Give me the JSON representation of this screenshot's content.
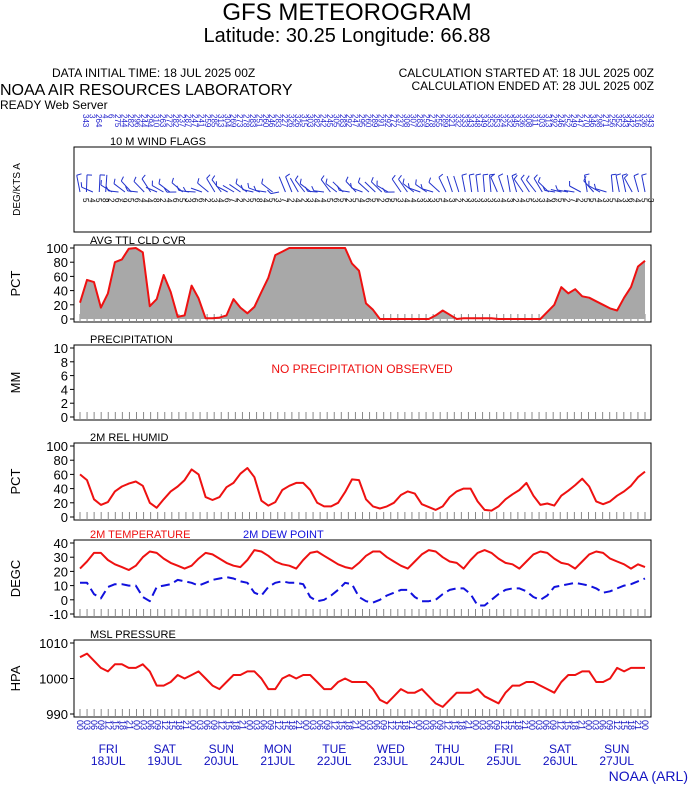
{
  "header": {
    "title": "GFS METEOROGRAM",
    "subtitle": "Latitude: 30.25 Longitude:  66.88",
    "initial_time": "DATA INITIAL TIME: 18 JUL 2025 00Z",
    "calc_started": "CALCULATION STARTED AT: 18 JUL 2025 00Z",
    "calc_ended": "CALCULATION ENDED AT: 28 JUL 2025 00Z",
    "lab": "NOAA AIR RESOURCES LABORATORY",
    "server": "READY Web Server",
    "credit": "NOAA (ARL)"
  },
  "colors": {
    "temp": "#ee1111",
    "dew": "#1111dd",
    "cloud_fill": "#a8a8a8",
    "day_labels": "#1010c0"
  },
  "chart_data": [
    {
      "type": "wind-flags",
      "title": "10 M  WIND FLAGS",
      "ylabel": "DEG/KTS  A",
      "directions": [
        343,
        3,
        264,
        4,
        6,
        275,
        244,
        282,
        296,
        244,
        294,
        310,
        263,
        272,
        282,
        237,
        287,
        247,
        241,
        259,
        285,
        313,
        304,
        269,
        273,
        278,
        283,
        251,
        260,
        246,
        283,
        227,
        326,
        326,
        315,
        303,
        282,
        242,
        245,
        305,
        283,
        292,
        247,
        295,
        260,
        289,
        291,
        292,
        272,
        237,
        308,
        307,
        283,
        259,
        278,
        255,
        289,
        321,
        332,
        333,
        343,
        348,
        349,
        353,
        353,
        324,
        332,
        345,
        336,
        308,
        311,
        303,
        313,
        292,
        246,
        252,
        249,
        247,
        270,
        346,
        298,
        271,
        256,
        352,
        343,
        342,
        316,
        336,
        343
      ],
      "speeds": [
        5,
        4,
        5,
        8,
        2,
        6,
        9,
        5,
        6,
        4,
        4,
        8,
        2,
        4,
        6,
        5,
        3,
        6,
        6,
        2,
        3,
        4,
        6,
        7,
        2,
        2,
        5,
        8,
        4,
        5,
        3,
        7,
        2,
        4,
        2,
        3,
        4,
        4,
        5,
        6,
        5,
        2,
        5,
        4,
        6,
        5,
        2,
        6,
        5,
        3,
        4,
        4,
        3,
        3,
        3,
        5,
        4,
        3,
        2,
        2,
        3,
        3,
        3,
        3,
        3,
        4,
        3,
        2,
        4,
        5,
        3,
        3,
        4,
        6,
        5,
        2,
        7,
        2,
        5,
        5,
        4,
        3,
        5,
        4,
        3,
        6,
        4,
        5,
        3
      ]
    },
    {
      "type": "area",
      "title": "AVG TTL CLD CVR",
      "ylabel": "PCT",
      "ylim": [
        0,
        100
      ],
      "yticks": [
        0,
        20,
        40,
        60,
        80,
        100
      ],
      "values": [
        23,
        55,
        52,
        16,
        36,
        80,
        84,
        99,
        100,
        94,
        18,
        28,
        62,
        38,
        3,
        5,
        47,
        29,
        1,
        1,
        2,
        5,
        28,
        16,
        8,
        17,
        38,
        58,
        90,
        95,
        100,
        101,
        101,
        101,
        101,
        101,
        100,
        100,
        102,
        78,
        68,
        22,
        13,
        0,
        0,
        0,
        0,
        0,
        0,
        0,
        0,
        5,
        12,
        6,
        0,
        1,
        1,
        1,
        1,
        1,
        0,
        0,
        0,
        0,
        0,
        0,
        0,
        10,
        20,
        45,
        36,
        42,
        32,
        30,
        25,
        20,
        15,
        12,
        30,
        45,
        74,
        82
      ]
    },
    {
      "type": "line",
      "title": "PRECIPITATION",
      "ylabel": "MM",
      "ylim": [
        0,
        10
      ],
      "yticks": [
        0,
        2,
        4,
        6,
        8,
        10
      ],
      "note": "NO PRECIPITATION OBSERVED",
      "values": []
    },
    {
      "type": "line",
      "title": "2M REL HUMID",
      "ylabel": "PCT",
      "ylim": [
        0,
        100
      ],
      "yticks": [
        0,
        20,
        40,
        60,
        80,
        100
      ],
      "values": [
        60,
        52,
        25,
        17,
        21,
        36,
        43,
        47,
        50,
        44,
        20,
        13,
        25,
        36,
        43,
        52,
        67,
        60,
        28,
        24,
        28,
        42,
        48,
        61,
        69,
        56,
        23,
        16,
        21,
        38,
        44,
        48,
        48,
        38,
        20,
        15,
        15,
        20,
        35,
        53,
        52,
        25,
        15,
        12,
        15,
        20,
        31,
        36,
        33,
        18,
        14,
        10,
        15,
        28,
        36,
        40,
        40,
        22,
        10,
        9,
        15,
        25,
        32,
        38,
        48,
        30,
        17,
        19,
        16,
        30,
        37,
        45,
        54,
        43,
        22,
        18,
        22,
        30,
        36,
        44,
        56,
        64
      ]
    },
    {
      "type": "line",
      "title": "2M TEMPERATURE",
      "ylabel": "DEGC",
      "ylim": [
        -10,
        40
      ],
      "yticks": [
        -10,
        0,
        10,
        20,
        30,
        40
      ],
      "series": [
        {
          "name": "2M TEMPERATURE",
          "values": [
            22,
            27,
            33,
            33,
            28,
            25,
            23,
            21,
            24,
            30,
            34,
            33,
            29,
            26,
            24,
            22,
            24,
            29,
            33,
            32,
            29,
            26,
            24,
            23,
            28,
            35,
            34,
            31,
            27,
            25,
            24,
            22,
            28,
            33,
            34,
            31,
            28,
            25,
            23,
            22,
            26,
            31,
            34,
            34,
            30,
            27,
            24,
            22,
            27,
            32,
            35,
            34,
            30,
            27,
            26,
            22,
            28,
            33,
            35,
            33,
            29,
            26,
            25,
            22,
            27,
            32,
            34,
            33,
            29,
            26,
            25,
            22,
            27,
            32,
            34,
            33,
            29,
            27,
            25,
            22,
            25,
            23
          ]
        },
        {
          "name": "2M   DEW POINT",
          "values": [
            12,
            12,
            4,
            1,
            9,
            11,
            11,
            10,
            10,
            2,
            -1,
            9,
            10,
            11,
            14,
            13,
            12,
            10,
            12,
            14,
            15,
            16,
            15,
            13,
            12,
            5,
            3,
            9,
            12,
            13,
            12,
            12,
            11,
            2,
            -1,
            0,
            3,
            7,
            12,
            11,
            2,
            -1,
            -2,
            0,
            3,
            5,
            7,
            7,
            2,
            -1,
            -1,
            0,
            4,
            7,
            8,
            8,
            4,
            -4,
            -4,
            0,
            4,
            7,
            8,
            8,
            6,
            2,
            0,
            3,
            9,
            10,
            11,
            12,
            11,
            10,
            8,
            5,
            6,
            8,
            10,
            11,
            13,
            15
          ]
        }
      ]
    },
    {
      "type": "line",
      "title": "MSL PRESSURE",
      "ylabel": "HPA",
      "ylim": [
        990,
        1010
      ],
      "yticks": [
        990,
        1000,
        1010
      ],
      "values": [
        1006,
        1007,
        1005,
        1003,
        1002,
        1004,
        1004,
        1003,
        1003,
        1004,
        1002,
        998,
        998,
        999,
        1001,
        1000,
        1001,
        1002,
        1000,
        998,
        997,
        999,
        1001,
        1001,
        1002,
        1002,
        1000,
        997,
        997,
        1000,
        1001,
        1000,
        1001,
        1001,
        999,
        997,
        997,
        999,
        1000,
        999,
        999,
        999,
        997,
        994,
        993,
        995,
        997,
        996,
        996,
        997,
        995,
        993,
        992,
        994,
        996,
        996,
        996,
        997,
        995,
        994,
        993,
        996,
        998,
        998,
        999,
        999,
        998,
        997,
        996,
        999,
        1001,
        1001,
        1002,
        1002,
        999,
        999,
        1000,
        1003,
        1002,
        1003,
        1003,
        1003
      ]
    }
  ],
  "days": [
    {
      "dow": "FRI",
      "date": "18JUL"
    },
    {
      "dow": "SAT",
      "date": "19JUL"
    },
    {
      "dow": "SUN",
      "date": "20JUL"
    },
    {
      "dow": "MON",
      "date": "21JUL"
    },
    {
      "dow": "TUE",
      "date": "22JUL"
    },
    {
      "dow": "WED",
      "date": "23JUL"
    },
    {
      "dow": "THU",
      "date": "24JUL"
    },
    {
      "dow": "FRI",
      "date": "25JUL"
    },
    {
      "dow": "SAT",
      "date": "26JUL"
    },
    {
      "dow": "SUN",
      "date": "27JUL"
    }
  ],
  "hour_labels": [
    "00",
    "03",
    "06",
    "09",
    "12",
    "15",
    "18",
    "21"
  ]
}
